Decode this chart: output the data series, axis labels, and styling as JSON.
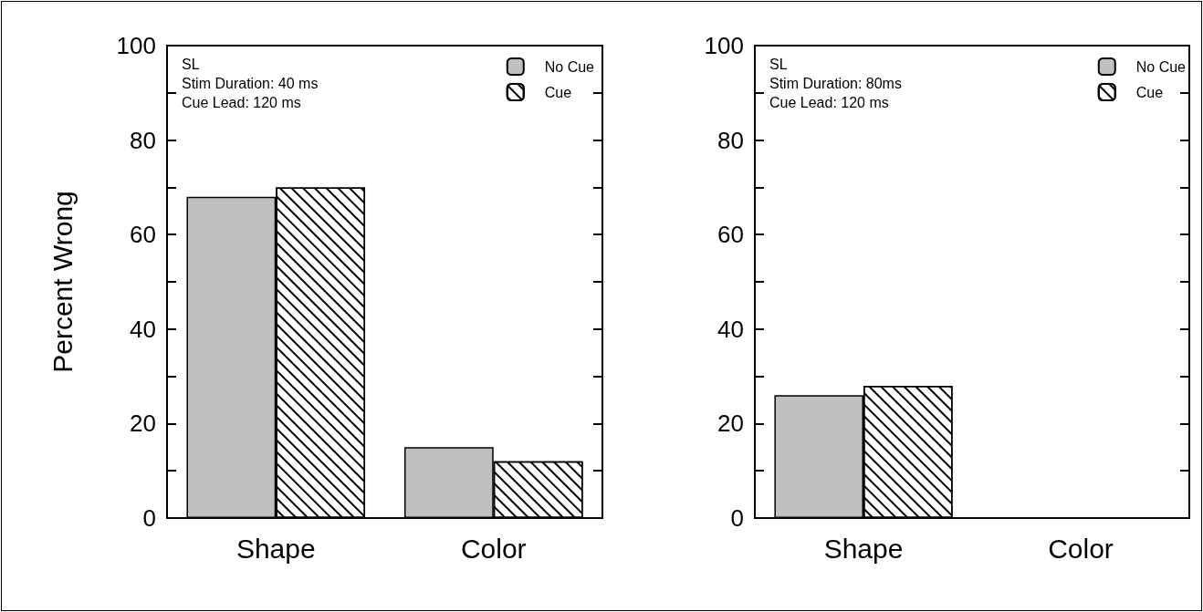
{
  "chart_data": [
    {
      "type": "bar",
      "ylabel": "Percent Wrong",
      "categories": [
        "Shape",
        "Color"
      ],
      "series": [
        {
          "name": "No Cue",
          "color": "#c0c0c0",
          "values": [
            68,
            15
          ]
        },
        {
          "name": "Cue",
          "color": "#ffffff",
          "values": [
            70,
            12
          ]
        }
      ],
      "annotations": [
        "SL",
        "Stim Duration: 40 ms",
        "Cue Lead: 120 ms"
      ],
      "ylim": [
        0,
        100
      ],
      "yticks": [
        0,
        {
          "value": 10,
          "label": null
        },
        20,
        {
          "value": 30,
          "label": null
        },
        40,
        {
          "value": 50,
          "label": null
        },
        60,
        {
          "value": 70,
          "label": null
        },
        80,
        {
          "value": 90,
          "label": null
        },
        100
      ],
      "legend": "top right",
      "grid": false
    },
    {
      "type": "bar",
      "categories": [
        "Shape",
        "Color"
      ],
      "series": [
        {
          "name": "No Cue",
          "color": "#c0c0c0",
          "values": [
            26,
            null
          ]
        },
        {
          "name": "Cue",
          "color": "#ffffff",
          "values": [
            28,
            null
          ]
        }
      ],
      "annotations": [
        "SL",
        "Stim Duration: 80ms",
        "Cue Lead: 120 ms"
      ],
      "ylim": [
        0,
        100
      ],
      "yticks": [
        0,
        {
          "value": 10,
          "label": null
        },
        20,
        {
          "value": 30,
          "label": null
        },
        40,
        {
          "value": 50,
          "label": null
        },
        60,
        {
          "value": 70,
          "label": null
        },
        80,
        {
          "value": 90,
          "label": null
        },
        100
      ],
      "legend": "top right",
      "grid": false
    }
  ]
}
